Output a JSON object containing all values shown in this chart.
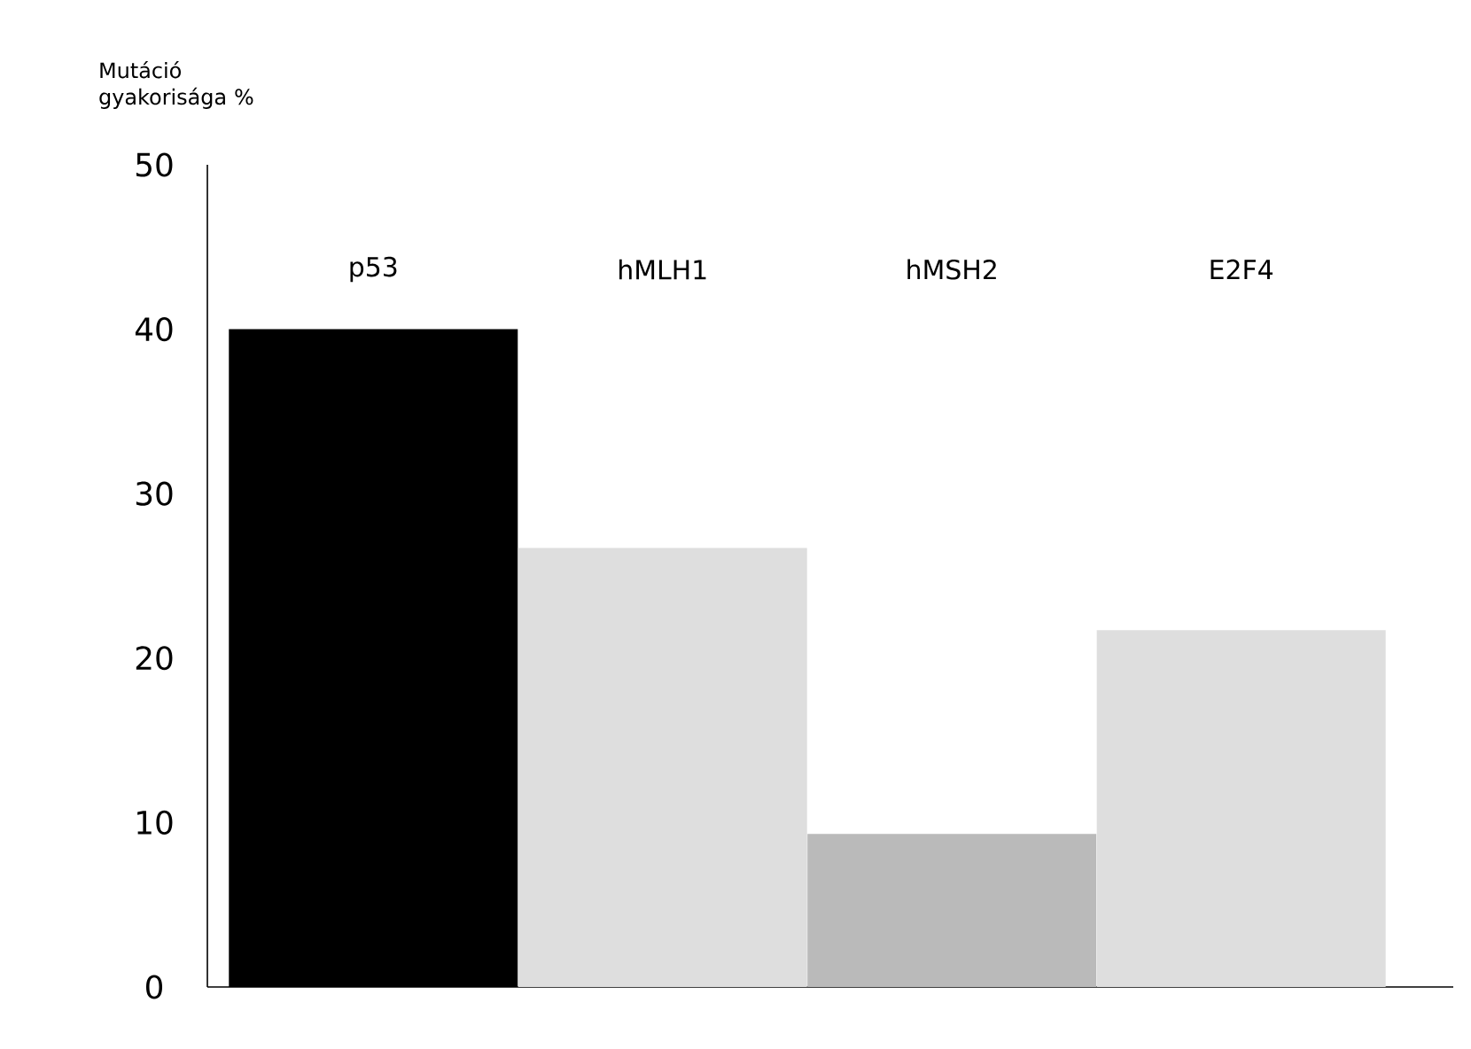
{
  "chart_data": {
    "type": "bar",
    "ylabel": "Mutáció gyakorisága %",
    "categories": [
      "p53",
      "hMLH1",
      "hMSH2",
      "E2F4"
    ],
    "values": [
      40,
      26.7,
      9.3,
      21.7
    ],
    "colors": [
      "#000000",
      "#dedede",
      "#bababa",
      "#dedede"
    ],
    "ylim": [
      0,
      50
    ],
    "yticks": [
      0,
      10,
      20,
      30,
      40,
      50
    ],
    "grid": false
  }
}
